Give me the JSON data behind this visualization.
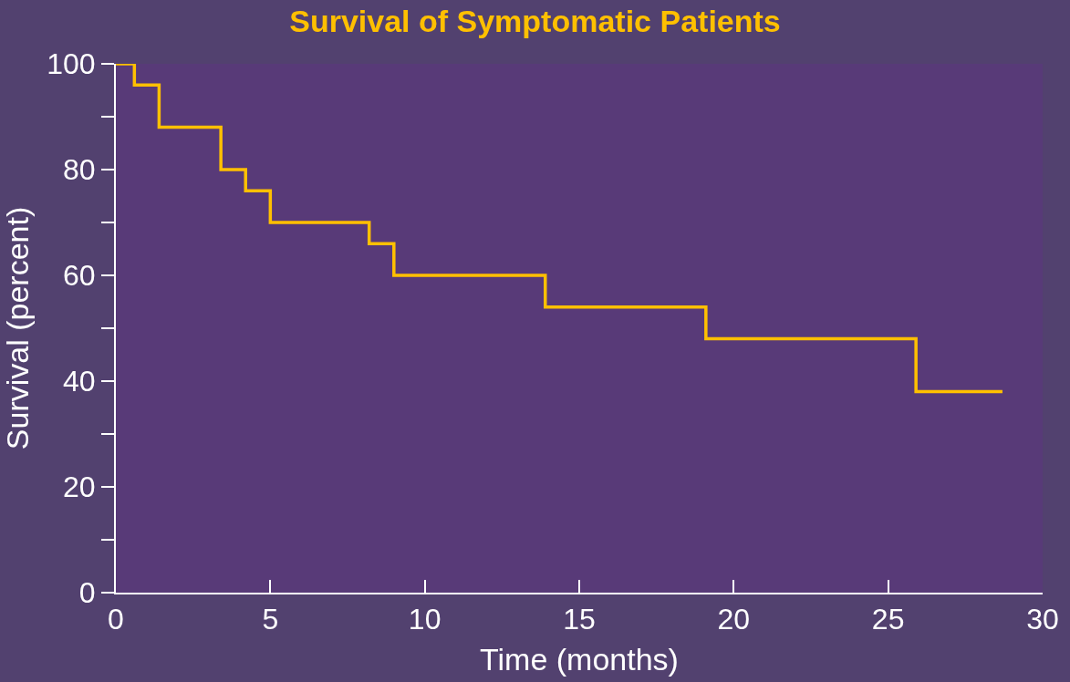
{
  "chart_data": {
    "type": "step",
    "title": "Survival of Symptomatic Patients",
    "xlabel": "Time (months)",
    "ylabel": "Survival (percent)",
    "x": [
      0,
      0.6,
      1.4,
      3.4,
      4.2,
      5.0,
      8.2,
      9.0,
      13.9,
      19.1,
      25.9,
      28.7
    ],
    "series": [
      {
        "color": "#ffc000",
        "values": [
          100,
          96,
          88,
          80,
          76,
          70,
          66,
          60,
          54,
          48,
          38,
          38
        ]
      }
    ],
    "xlim": [
      0,
      30
    ],
    "xticks": [
      0,
      5,
      10,
      15,
      20,
      25,
      30
    ],
    "ylim": [
      0,
      100
    ],
    "yticks": [
      0,
      {
        "value": 10,
        "label": null
      },
      20,
      {
        "value": 30,
        "label": null
      },
      40,
      {
        "value": 50,
        "label": null
      },
      60,
      {
        "value": 70,
        "label": null
      },
      80,
      {
        "value": 90,
        "label": null
      },
      100
    ],
    "grid": false,
    "legend": false,
    "marker": "none",
    "line_style": "solid"
  }
}
